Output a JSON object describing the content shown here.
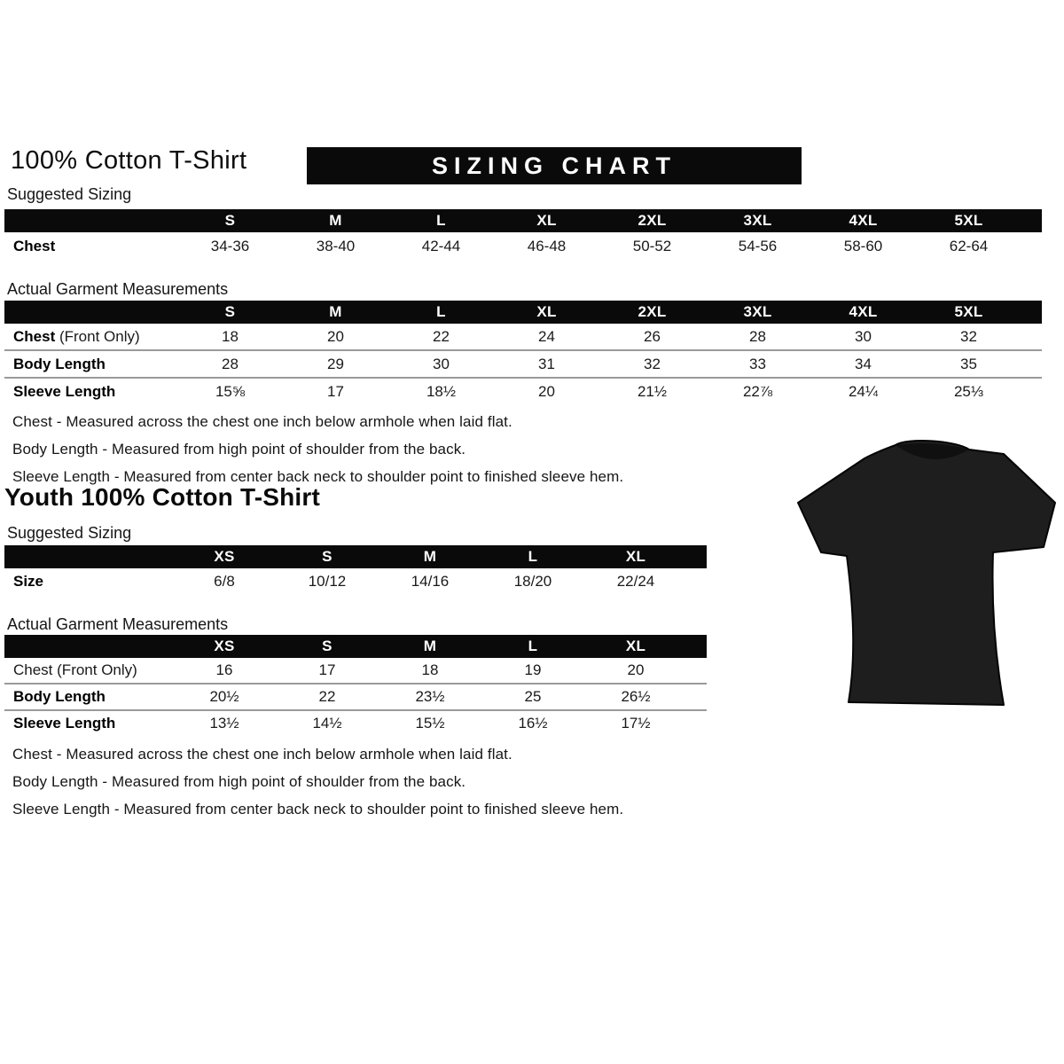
{
  "colors": {
    "banner_bg": "#0a0a0a",
    "header_bg": "#0a0a0a",
    "tshirt": "#1e1e1e",
    "tshirt_neck": "#101010"
  },
  "page": {
    "title": "100% Cotton T-Shirt",
    "banner": "SIZING CHART",
    "youth_title": "Youth 100% Cotton T-Shirt"
  },
  "adult": {
    "suggested": {
      "label": "Suggested Sizing",
      "columns": [
        "S",
        "M",
        "L",
        "XL",
        "2XL",
        "3XL",
        "4XL",
        "5XL"
      ],
      "rows": [
        {
          "label": "Chest",
          "suffix": "",
          "bold": true,
          "values": [
            "34-36",
            "38-40",
            "42-44",
            "46-48",
            "50-52",
            "54-56",
            "58-60",
            "62-64"
          ]
        }
      ]
    },
    "measurements": {
      "label": "Actual Garment Measurements",
      "columns": [
        "S",
        "M",
        "L",
        "XL",
        "2XL",
        "3XL",
        "4XL",
        "5XL"
      ],
      "rows": [
        {
          "label": "Chest",
          "suffix": " (Front Only)",
          "bold": true,
          "values": [
            "18",
            "20",
            "22",
            "24",
            "26",
            "28",
            "30",
            "32"
          ]
        },
        {
          "label": "Body Length",
          "suffix": "",
          "bold": true,
          "values": [
            "28",
            "29",
            "30",
            "31",
            "32",
            "33",
            "34",
            "35"
          ]
        },
        {
          "label": "Sleeve Length",
          "suffix": "",
          "bold": true,
          "values": [
            "15⅝",
            "17",
            "18½",
            "20",
            "21½",
            "22⅞",
            "24¼",
            "25⅓"
          ]
        }
      ]
    },
    "notes": [
      "Chest - Measured across the chest one inch below armhole when laid flat.",
      "Body Length - Measured from high point of shoulder from the back.",
      "Sleeve Length - Measured from center back neck to shoulder point to finished sleeve hem."
    ]
  },
  "youth": {
    "suggested": {
      "label": "Suggested Sizing",
      "columns": [
        "XS",
        "S",
        "M",
        "L",
        "XL"
      ],
      "rows": [
        {
          "label": "Size",
          "suffix": "",
          "bold": true,
          "values": [
            "6/8",
            "10/12",
            "14/16",
            "18/20",
            "22/24"
          ]
        }
      ]
    },
    "measurements": {
      "label": "Actual Garment Measurements",
      "columns": [
        "XS",
        "S",
        "M",
        "L",
        "XL"
      ],
      "rows": [
        {
          "label": "Chest",
          "suffix": " (Front Only)",
          "bold": false,
          "values": [
            "16",
            "17",
            "18",
            "19",
            "20"
          ]
        },
        {
          "label": "Body Length",
          "suffix": "",
          "bold": true,
          "values": [
            "20½",
            "22",
            "23½",
            "25",
            "26½"
          ]
        },
        {
          "label": "Sleeve Length",
          "suffix": "",
          "bold": true,
          "values": [
            "13½",
            "14½",
            "15½",
            "16½",
            "17½"
          ]
        }
      ]
    },
    "notes": [
      "Chest - Measured across the chest one inch below armhole when laid flat.",
      "Body Length - Measured from high point of shoulder from the back.",
      "Sleeve Length - Measured from center back neck to shoulder point to finished sleeve hem."
    ]
  },
  "tshirt": {
    "name": "black-short-sleeve-tshirt",
    "color": "#1e1e1e"
  }
}
